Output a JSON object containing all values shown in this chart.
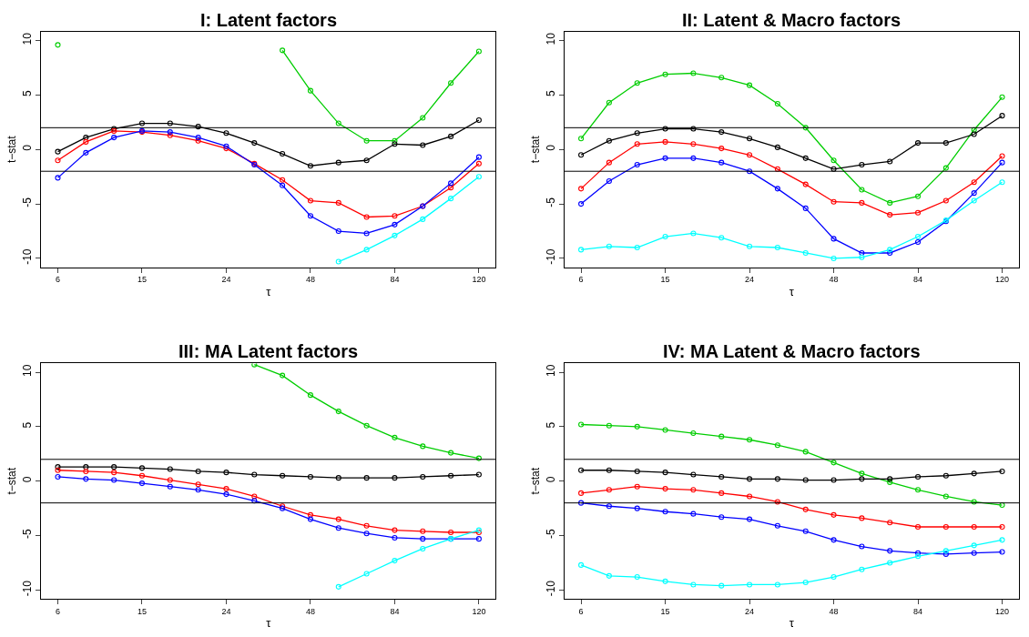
{
  "chart_data": [
    {
      "type": "line",
      "title": "I: Latent factors",
      "xlabel": "τ",
      "ylabel": "t−stat",
      "categories": [
        "6",
        null,
        null,
        "15",
        null,
        null,
        "24",
        null,
        null,
        "48",
        null,
        null,
        "84",
        null,
        null,
        "120"
      ],
      "ylim": [
        -10.8,
        10.8
      ],
      "yticks": [
        -10,
        -5,
        0,
        5,
        10
      ],
      "marker": "circle",
      "ref_lines": [
        {
          "axis": "y",
          "value": 2,
          "color": "#000000"
        },
        {
          "axis": "y",
          "value": -2,
          "color": "#000000"
        }
      ],
      "series": [
        {
          "color": "#00cd00",
          "values": [
            9.6,
            null,
            null,
            null,
            null,
            null,
            null,
            null,
            9.1,
            5.4,
            2.4,
            0.8,
            0.8,
            2.9,
            6.1,
            9.0
          ]
        },
        {
          "color": "#000000",
          "values": [
            -0.2,
            1.1,
            1.9,
            2.4,
            2.4,
            2.1,
            1.5,
            0.6,
            -0.4,
            -1.5,
            -1.2,
            -1.0,
            0.5,
            0.4,
            1.2,
            2.7
          ]
        },
        {
          "color": "#ff0000",
          "values": [
            -1.0,
            0.7,
            1.7,
            1.6,
            1.3,
            0.8,
            0.1,
            -1.3,
            -2.8,
            -4.7,
            -4.9,
            -6.2,
            -6.1,
            -5.2,
            -3.5,
            -1.3
          ]
        },
        {
          "color": "#0000ff",
          "values": [
            -2.6,
            -0.3,
            1.1,
            1.7,
            1.6,
            1.1,
            0.3,
            -1.4,
            -3.3,
            -6.1,
            -7.5,
            -7.7,
            -6.9,
            -5.2,
            -3.1,
            -0.7
          ]
        },
        {
          "color": "#00ffff",
          "values": [
            null,
            null,
            null,
            null,
            null,
            null,
            null,
            null,
            null,
            null,
            -10.3,
            -9.2,
            -7.9,
            -6.4,
            -4.5,
            -2.5
          ]
        }
      ]
    },
    {
      "type": "line",
      "title": "II: Latent & Macro factors",
      "xlabel": "τ",
      "ylabel": "t−stat",
      "categories": [
        "6",
        null,
        null,
        "15",
        null,
        null,
        "24",
        null,
        null,
        "48",
        null,
        null,
        "84",
        null,
        null,
        "120"
      ],
      "ylim": [
        -10.8,
        10.8
      ],
      "yticks": [
        -10,
        -5,
        0,
        5,
        10
      ],
      "marker": "circle",
      "ref_lines": [
        {
          "axis": "y",
          "value": 2,
          "color": "#000000"
        },
        {
          "axis": "y",
          "value": -2,
          "color": "#000000"
        }
      ],
      "series": [
        {
          "color": "#00cd00",
          "values": [
            1.0,
            4.3,
            6.1,
            6.9,
            7.0,
            6.6,
            5.9,
            4.2,
            2.0,
            -1.0,
            -3.7,
            -4.9,
            -4.3,
            -1.7,
            1.8,
            4.8
          ]
        },
        {
          "color": "#000000",
          "values": [
            -0.5,
            0.8,
            1.5,
            1.9,
            1.9,
            1.6,
            1.0,
            0.2,
            -0.8,
            -1.8,
            -1.4,
            -1.1,
            0.6,
            0.6,
            1.4,
            3.1
          ]
        },
        {
          "color": "#ff0000",
          "values": [
            -3.6,
            -1.2,
            0.5,
            0.7,
            0.5,
            0.1,
            -0.5,
            -1.8,
            -3.2,
            -4.8,
            -4.9,
            -6.0,
            -5.8,
            -4.7,
            -3.0,
            -0.6
          ]
        },
        {
          "color": "#0000ff",
          "values": [
            -5.0,
            -2.9,
            -1.4,
            -0.8,
            -0.8,
            -1.2,
            -2.0,
            -3.6,
            -5.4,
            -8.2,
            -9.5,
            -9.5,
            -8.5,
            -6.6,
            -4.0,
            -1.2
          ]
        },
        {
          "color": "#00ffff",
          "values": [
            -9.2,
            -8.9,
            -9.0,
            -8.0,
            -7.7,
            -8.1,
            -8.9,
            -9.0,
            -9.5,
            -10.0,
            -9.9,
            -9.2,
            -8.0,
            -6.5,
            -4.7,
            -3.0
          ]
        }
      ]
    },
    {
      "type": "line",
      "title": "III: MA Latent factors",
      "xlabel": "τ",
      "ylabel": "t−stat",
      "categories": [
        "6",
        null,
        null,
        "15",
        null,
        null,
        "24",
        null,
        null,
        "48",
        null,
        null,
        "84",
        null,
        null,
        "120"
      ],
      "ylim": [
        -10.8,
        10.8
      ],
      "yticks": [
        -10,
        -5,
        0,
        5,
        10
      ],
      "marker": "circle",
      "ref_lines": [
        {
          "axis": "y",
          "value": 2,
          "color": "#000000"
        },
        {
          "axis": "y",
          "value": -2,
          "color": "#000000"
        }
      ],
      "series": [
        {
          "color": "#00cd00",
          "values": [
            null,
            null,
            null,
            null,
            null,
            null,
            null,
            10.7,
            9.7,
            7.9,
            6.4,
            5.1,
            4.0,
            3.2,
            2.6,
            2.1
          ]
        },
        {
          "color": "#000000",
          "values": [
            1.3,
            1.3,
            1.3,
            1.2,
            1.1,
            0.9,
            0.8,
            0.6,
            0.5,
            0.4,
            0.3,
            0.3,
            0.3,
            0.4,
            0.5,
            0.6
          ]
        },
        {
          "color": "#ff0000",
          "values": [
            1.0,
            0.9,
            0.8,
            0.5,
            0.1,
            -0.3,
            -0.7,
            -1.4,
            -2.3,
            -3.1,
            -3.5,
            -4.1,
            -4.5,
            -4.6,
            -4.7,
            -4.7
          ]
        },
        {
          "color": "#0000ff",
          "values": [
            0.4,
            0.2,
            0.1,
            -0.2,
            -0.5,
            -0.8,
            -1.2,
            -1.8,
            -2.5,
            -3.5,
            -4.3,
            -4.8,
            -5.2,
            -5.3,
            -5.3,
            -5.3
          ]
        },
        {
          "color": "#00ffff",
          "values": [
            null,
            null,
            null,
            null,
            null,
            null,
            null,
            null,
            null,
            null,
            -9.7,
            -8.5,
            -7.3,
            -6.2,
            -5.3,
            -4.5
          ]
        }
      ]
    },
    {
      "type": "line",
      "title": "IV: MA Latent & Macro factors",
      "xlabel": "τ",
      "ylabel": "t−stat",
      "categories": [
        "6",
        null,
        null,
        "15",
        null,
        null,
        "24",
        null,
        null,
        "48",
        null,
        null,
        "84",
        null,
        null,
        "120"
      ],
      "ylim": [
        -10.8,
        10.8
      ],
      "yticks": [
        -10,
        -5,
        0,
        5,
        10
      ],
      "marker": "circle",
      "ref_lines": [
        {
          "axis": "y",
          "value": 2,
          "color": "#000000"
        },
        {
          "axis": "y",
          "value": -2,
          "color": "#000000"
        }
      ],
      "series": [
        {
          "color": "#00cd00",
          "values": [
            5.2,
            5.1,
            5.0,
            4.7,
            4.4,
            4.1,
            3.8,
            3.3,
            2.7,
            1.7,
            0.7,
            -0.1,
            -0.8,
            -1.4,
            -1.9,
            -2.2
          ]
        },
        {
          "color": "#000000",
          "values": [
            1.0,
            1.0,
            0.9,
            0.8,
            0.6,
            0.4,
            0.2,
            0.2,
            0.1,
            0.1,
            0.2,
            0.2,
            0.4,
            0.5,
            0.7,
            0.9
          ]
        },
        {
          "color": "#ff0000",
          "values": [
            -1.1,
            -0.8,
            -0.5,
            -0.7,
            -0.8,
            -1.1,
            -1.4,
            -1.9,
            -2.6,
            -3.1,
            -3.4,
            -3.8,
            -4.2,
            -4.2,
            -4.2,
            -4.2
          ]
        },
        {
          "color": "#0000ff",
          "values": [
            -2.0,
            -2.3,
            -2.5,
            -2.8,
            -3.0,
            -3.3,
            -3.5,
            -4.1,
            -4.6,
            -5.4,
            -6.0,
            -6.4,
            -6.6,
            -6.7,
            -6.6,
            -6.5
          ]
        },
        {
          "color": "#00ffff",
          "values": [
            -7.7,
            -8.7,
            -8.8,
            -9.2,
            -9.5,
            -9.6,
            -9.5,
            -9.5,
            -9.3,
            -8.8,
            -8.1,
            -7.5,
            -6.9,
            -6.4,
            -5.9,
            -5.4
          ]
        }
      ]
    }
  ]
}
